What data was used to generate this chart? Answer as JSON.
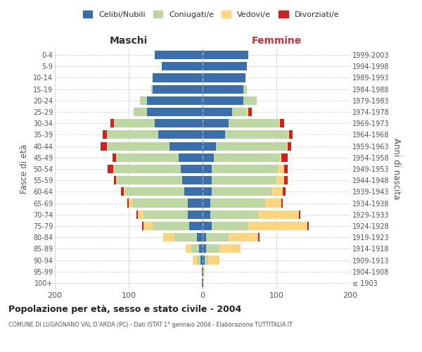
{
  "age_groups": [
    "100+",
    "95-99",
    "90-94",
    "85-89",
    "80-84",
    "75-79",
    "70-74",
    "65-69",
    "60-64",
    "55-59",
    "50-54",
    "45-49",
    "40-44",
    "35-39",
    "30-34",
    "25-29",
    "20-24",
    "15-19",
    "10-14",
    "5-9",
    "0-4"
  ],
  "birth_years": [
    "≤ 1903",
    "1904-1908",
    "1909-1913",
    "1914-1918",
    "1919-1923",
    "1924-1928",
    "1929-1933",
    "1934-1938",
    "1939-1943",
    "1944-1948",
    "1949-1953",
    "1954-1958",
    "1959-1963",
    "1964-1968",
    "1969-1973",
    "1974-1978",
    "1979-1983",
    "1984-1988",
    "1989-1993",
    "1994-1998",
    "1999-2003"
  ],
  "colors": {
    "celibi": "#3a6fad",
    "coniugati": "#bdd7a3",
    "vedovi": "#ffd580",
    "divorziati": "#cc2222"
  },
  "maschi": {
    "celibi": [
      1,
      1,
      3,
      5,
      8,
      18,
      20,
      20,
      25,
      28,
      30,
      32,
      45,
      60,
      65,
      75,
      75,
      68,
      68,
      55,
      65
    ],
    "coniugati": [
      0,
      0,
      5,
      10,
      30,
      50,
      60,
      75,
      80,
      88,
      90,
      85,
      85,
      70,
      55,
      18,
      10,
      2,
      0,
      0,
      0
    ],
    "vedovi": [
      0,
      0,
      5,
      8,
      15,
      12,
      8,
      5,
      2,
      1,
      1,
      0,
      0,
      0,
      0,
      0,
      0,
      0,
      0,
      0,
      0
    ],
    "divorziati": [
      0,
      0,
      0,
      0,
      0,
      2,
      2,
      2,
      3,
      3,
      8,
      5,
      8,
      5,
      5,
      0,
      0,
      0,
      0,
      0,
      0
    ]
  },
  "femmine": {
    "celibi": [
      1,
      1,
      3,
      5,
      5,
      12,
      10,
      10,
      12,
      12,
      12,
      15,
      18,
      30,
      35,
      40,
      55,
      55,
      58,
      60,
      62
    ],
    "coniugati": [
      0,
      0,
      5,
      18,
      30,
      50,
      65,
      75,
      82,
      88,
      90,
      90,
      95,
      85,
      68,
      20,
      18,
      5,
      0,
      0,
      0
    ],
    "vedovi": [
      1,
      2,
      15,
      28,
      40,
      80,
      55,
      22,
      15,
      10,
      8,
      2,
      2,
      2,
      2,
      2,
      0,
      0,
      0,
      0,
      0
    ],
    "divorziati": [
      0,
      0,
      0,
      0,
      2,
      2,
      2,
      2,
      3,
      5,
      5,
      8,
      5,
      5,
      5,
      5,
      0,
      0,
      0,
      0,
      0
    ]
  },
  "title": "Popolazione per età, sesso e stato civile - 2004",
  "subtitle": "COMUNE DI LUGAGNANO VAL D’ARDA (PC) - Dati ISTAT 1° gennaio 2004 - Elaborazione TUTTITALIA.IT",
  "ylabel_left": "Fasce di età",
  "ylabel_right": "Anni di nascita",
  "xlabel_left": "Maschi",
  "xlabel_right": "Femmine",
  "xlim": 200,
  "legend_labels": [
    "Celibi/Nubili",
    "Coniugati/e",
    "Vedovi/e",
    "Divorziati/e"
  ],
  "background_color": "#ffffff",
  "grid_color": "#cccccc"
}
